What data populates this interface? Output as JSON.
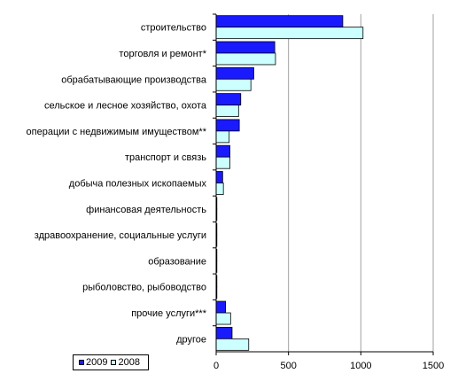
{
  "chart_data": {
    "type": "bar",
    "orientation": "horizontal",
    "categories": [
      "строительство",
      "торговля и ремонт*",
      "обрабатывающие производства",
      "сельское и лесное хозяйство, охота",
      "операции с недвижимым имуществом**",
      "транспорт и связь",
      "добыча полезных ископаемых",
      "финансовая деятельность",
      "здравоохранение, социальные услуги",
      "образование",
      "рыболовство, рыбоводство",
      "прочие услуги***",
      "другое"
    ],
    "series": [
      {
        "name": "2009",
        "color": "#1a1aff",
        "values": [
          875,
          405,
          260,
          170,
          160,
          95,
          45,
          5,
          5,
          5,
          5,
          65,
          110
        ]
      },
      {
        "name": "2008",
        "color": "#ccffff",
        "values": [
          1015,
          410,
          240,
          155,
          90,
          95,
          50,
          5,
          5,
          5,
          5,
          100,
          225
        ]
      }
    ],
    "xlim": [
      0,
      1500
    ],
    "xticks": [
      "0",
      "500",
      "1000",
      "1500"
    ],
    "grid": true,
    "legend_position": "bottom-left"
  }
}
